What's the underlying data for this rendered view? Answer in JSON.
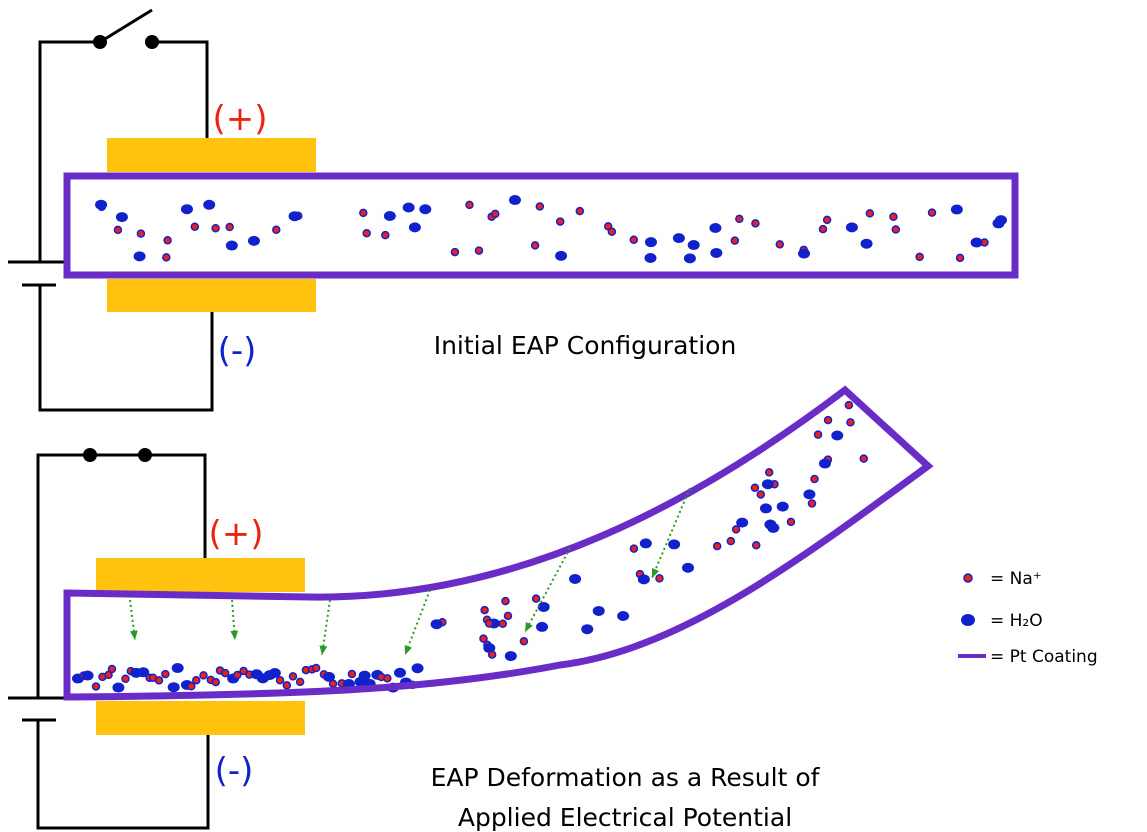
{
  "panels": [
    {
      "positive_label": "(+)",
      "negative_label": "(-)",
      "caption": [
        "Initial EAP Configuration"
      ]
    },
    {
      "positive_label": "(+)",
      "negative_label": "(-)",
      "caption": [
        "EAP Deformation as a Result of",
        "Applied Electrical Potential"
      ]
    }
  ],
  "legend": [
    {
      "label": "= Na⁺"
    },
    {
      "label": "= H₂O"
    },
    {
      "label": "= Pt Coating"
    }
  ]
}
